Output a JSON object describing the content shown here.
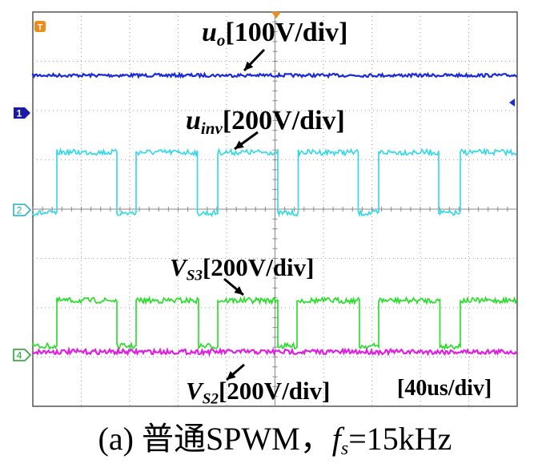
{
  "oscilloscope": {
    "trigger_marker": "T",
    "time_scale": "[40us/div]",
    "channel_markers": [
      {
        "id": "1",
        "color": "#1a1aa8"
      },
      {
        "id": "2",
        "color": "#18b0b8"
      },
      {
        "id": "4",
        "color": "#1a9a2a"
      }
    ],
    "traces": [
      {
        "name": "uo",
        "color": "#1a2ad8",
        "shape": "flat"
      },
      {
        "name": "uinv",
        "color": "#2fd8e8",
        "shape": "pwm"
      },
      {
        "name": "VS3",
        "color": "#22dd22",
        "shape": "pwm"
      },
      {
        "name": "VS2",
        "color": "#e020e0",
        "shape": "flat"
      }
    ],
    "labels": {
      "uo": {
        "main": "u",
        "sub": "o",
        "scale": "[100V/div]"
      },
      "uinv": {
        "main": "u",
        "sub": "inv",
        "scale": "[200V/div]"
      },
      "vs3": {
        "main": "V",
        "sub": "S3",
        "scale": "[200V/div]"
      },
      "vs2": {
        "main": "V",
        "sub": "S2",
        "scale": "[200V/div]"
      }
    }
  },
  "caption": {
    "prefix": "(a)  普通SPWM，",
    "f": "f",
    "f_sub": "s",
    "suffix": "=15kHz"
  }
}
